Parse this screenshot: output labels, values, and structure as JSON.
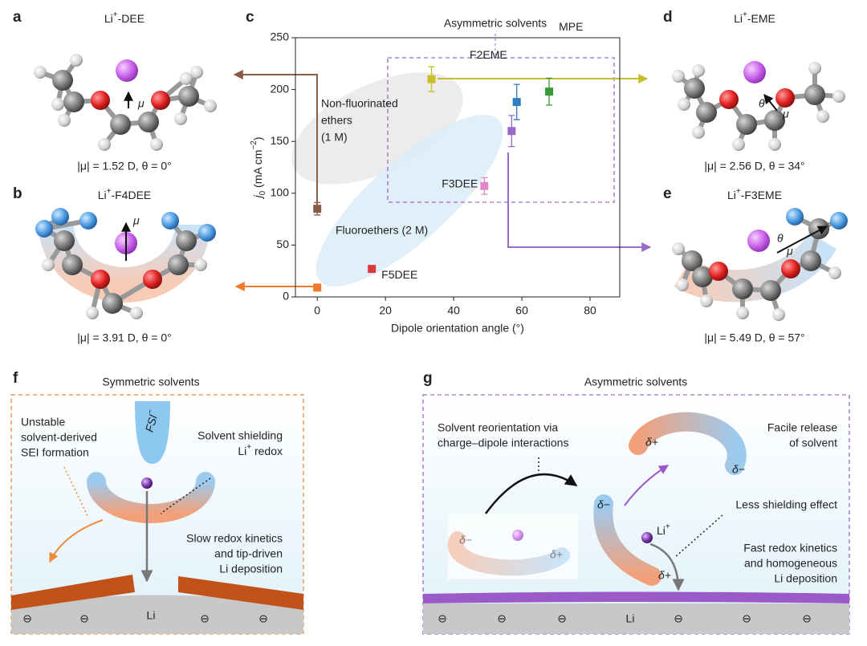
{
  "panels": {
    "a": {
      "letter": "a",
      "ion": "Li",
      "charge": "+",
      "solvent": "-DEE",
      "mu": "μ",
      "dipole": "|μ| = 1.52 D, θ = 0°"
    },
    "b": {
      "letter": "b",
      "ion": "Li",
      "charge": "+",
      "solvent": "-F4DEE",
      "mu": "μ",
      "dipole": "|μ| = 3.91 D, θ = 0°"
    },
    "c": {
      "letter": "c"
    },
    "d": {
      "letter": "d",
      "ion": "Li",
      "charge": "+",
      "solvent": "-EME",
      "mu": "μ",
      "theta": "θ",
      "dipole": "|μ| = 2.56 D, θ = 34°"
    },
    "e": {
      "letter": "e",
      "ion": "Li",
      "charge": "+",
      "solvent": "-F3EME",
      "mu": "μ",
      "theta": "θ",
      "dipole": "|μ| = 5.49 D, θ = 57°"
    },
    "f": {
      "letter": "f",
      "title": "Symmetric solvents",
      "sei": [
        "Unstable",
        "solvent-derived",
        "SEI formation"
      ],
      "anion": "FSI",
      "anion_charge": "−",
      "shield": [
        "Solvent shielding"
      ],
      "shield_ion": "Li",
      "shield_charge": "+",
      "shield_rest": " redox",
      "kinetics": [
        "Slow redox kinetics",
        "and tip-driven",
        "Li deposition"
      ],
      "metal": "Li",
      "electron": "⊖"
    },
    "g": {
      "letter": "g",
      "title": "Asymmetric solvents",
      "reorient": [
        "Solvent reorientation via",
        "charge–dipole interactions"
      ],
      "release": [
        "Facile release",
        "of solvent"
      ],
      "less": "Less shielding effect",
      "ion": "Li",
      "charge": "+",
      "kinetics": [
        "Fast redox kinetics",
        "and homogeneous",
        "Li deposition"
      ],
      "metal": "Li",
      "electron": "⊖",
      "delta_plus": "δ+",
      "delta_minus": "δ−"
    }
  },
  "chart_data": {
    "type": "scatter",
    "title": "Asymmetric solvents",
    "xlabel": "Dipole orientation angle (°)",
    "ylabel": {
      "symbol": "j",
      "sub": "0",
      "unit": " (mA cm",
      "sup": "−2",
      "close": ")"
    },
    "x": [
      0,
      0,
      16,
      33.5,
      49,
      57,
      58.5,
      68
    ],
    "values": [
      85,
      9,
      27,
      210,
      107,
      160,
      188,
      198
    ],
    "errors": [
      6,
      0,
      3,
      12,
      8,
      15,
      17,
      13
    ],
    "colors": [
      "#8b5a4a",
      "#ef7a2a",
      "#d93a3a",
      "#c8c02a",
      "#e088c8",
      "#9a6ac8",
      "#2f7fc0",
      "#3a9a3a"
    ],
    "point_labels": [
      null,
      null,
      "F5DEE",
      null,
      "F3DEE",
      null,
      "F2EME",
      "MPE"
    ],
    "annotations": [
      [
        "Non-fluorinated",
        "ethers",
        "(1 M)"
      ],
      [
        "Fluoroethers (2 M)"
      ]
    ],
    "xlim": [
      -6.4,
      88.7
    ],
    "ylim": [
      0,
      250
    ],
    "xticks": [
      0,
      20,
      40,
      60,
      80
    ],
    "yticks": [
      0,
      50,
      100,
      150,
      200,
      250
    ]
  }
}
